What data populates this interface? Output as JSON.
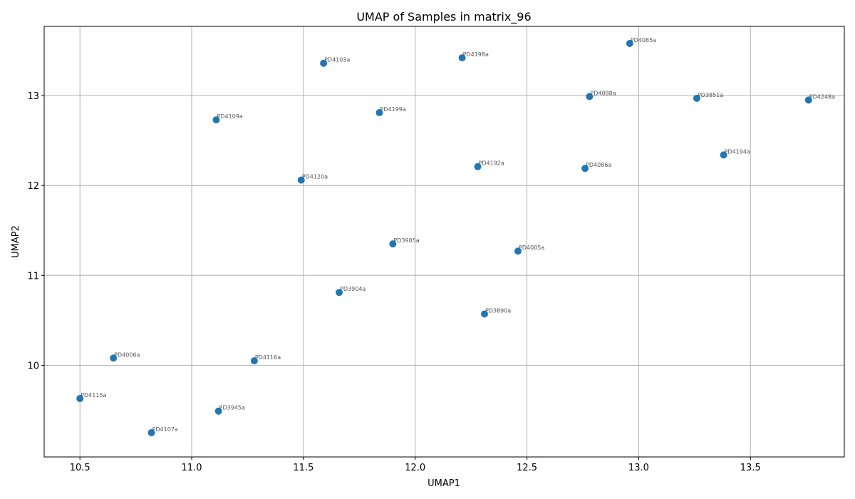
{
  "chart_data": {
    "type": "scatter",
    "title": "UMAP of Samples in matrix_96",
    "xlabel": "UMAP1",
    "ylabel": "UMAP2",
    "xlim": [
      10.34,
      13.92
    ],
    "ylim": [
      8.98,
      13.77
    ],
    "xticks": [
      10.5,
      11.0,
      11.5,
      12.0,
      12.5,
      13.0,
      13.5
    ],
    "xtick_labels": [
      "10.5",
      "11.0",
      "11.5",
      "12.0",
      "12.5",
      "13.0",
      "13.5"
    ],
    "yticks": [
      10,
      11,
      12,
      13
    ],
    "ytick_labels": [
      "10",
      "11",
      "12",
      "13"
    ],
    "grid": true,
    "color": "#1f77b4",
    "points": [
      {
        "label": "PD4085a",
        "x": 12.96,
        "y": 13.58
      },
      {
        "label": "PD4198a",
        "x": 12.21,
        "y": 13.42
      },
      {
        "label": "PD4103a",
        "x": 11.59,
        "y": 13.36
      },
      {
        "label": "PD4088a",
        "x": 12.78,
        "y": 12.99
      },
      {
        "label": "PD3851a",
        "x": 13.26,
        "y": 12.97
      },
      {
        "label": "PD4248a",
        "x": 13.76,
        "y": 12.95
      },
      {
        "label": "PD4199a",
        "x": 11.84,
        "y": 12.81
      },
      {
        "label": "PD4109a",
        "x": 11.11,
        "y": 12.73
      },
      {
        "label": "PD4194a",
        "x": 13.38,
        "y": 12.34
      },
      {
        "label": "PD4192a",
        "x": 12.28,
        "y": 12.21
      },
      {
        "label": "PD4086a",
        "x": 12.76,
        "y": 12.19
      },
      {
        "label": "PD4120a",
        "x": 11.49,
        "y": 12.06
      },
      {
        "label": "PD3905a",
        "x": 11.9,
        "y": 11.35
      },
      {
        "label": "PD4005a",
        "x": 12.46,
        "y": 11.27
      },
      {
        "label": "PD3904a",
        "x": 11.66,
        "y": 10.81
      },
      {
        "label": "PD3890a",
        "x": 12.31,
        "y": 10.57
      },
      {
        "label": "PD4006a",
        "x": 10.65,
        "y": 10.08
      },
      {
        "label": "PD4116a",
        "x": 11.28,
        "y": 10.05
      },
      {
        "label": "PD4115a",
        "x": 10.5,
        "y": 9.63
      },
      {
        "label": "PD3945a",
        "x": 11.12,
        "y": 9.49
      },
      {
        "label": "PD4107a",
        "x": 10.82,
        "y": 9.25
      }
    ]
  }
}
